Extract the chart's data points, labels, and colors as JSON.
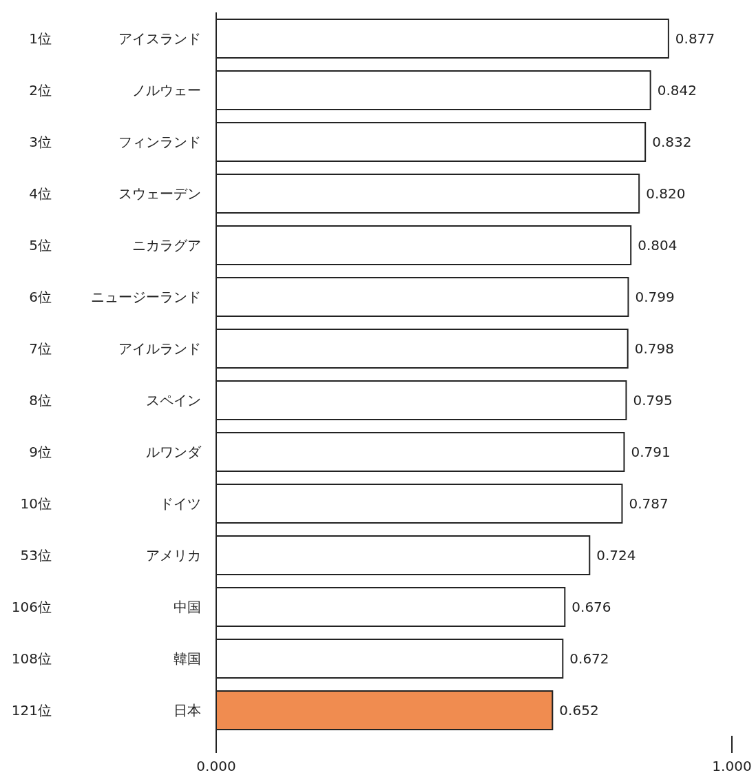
{
  "chart_data": {
    "type": "bar",
    "orientation": "horizontal",
    "categories": [
      "アイスランド",
      "ノルウェー",
      "フィンランド",
      "スウェーデン",
      "ニカラグア",
      "ニュージーランド",
      "アイルランド",
      "スペイン",
      "ルワンダ",
      "ドイツ",
      "アメリカ",
      "中国",
      "韓国",
      "日本"
    ],
    "values": [
      0.877,
      0.842,
      0.832,
      0.82,
      0.804,
      0.799,
      0.798,
      0.795,
      0.791,
      0.787,
      0.724,
      0.676,
      0.672,
      0.652
    ],
    "value_labels": [
      "0.877",
      "0.842",
      "0.832",
      "0.820",
      "0.804",
      "0.799",
      "0.798",
      "0.795",
      "0.791",
      "0.787",
      "0.724",
      "0.676",
      "0.672",
      "0.652"
    ],
    "colors": [
      "#ffffff",
      "#ffffff",
      "#ffffff",
      "#ffffff",
      "#ffffff",
      "#ffffff",
      "#ffffff",
      "#ffffff",
      "#ffffff",
      "#ffffff",
      "#ffffff",
      "#ffffff",
      "#ffffff",
      "#f08c50"
    ],
    "xlim": [
      0,
      1
    ],
    "xticks": [
      {
        "value": 0,
        "label": "0.000"
      },
      {
        "value": 1,
        "label": "1.000"
      }
    ],
    "grid": false,
    "annotations": [
      "1位",
      "2位",
      "3位",
      "4位",
      "5位",
      "6位",
      "7位",
      "8位",
      "9位",
      "10位",
      "53位",
      "106位",
      "108位",
      "121位"
    ]
  }
}
